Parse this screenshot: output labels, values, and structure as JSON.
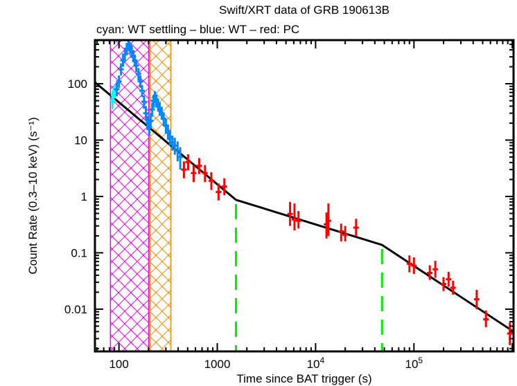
{
  "chart_data": {
    "type": "scatter",
    "title": "Swift/XRT data of GRB 190613B",
    "subtitle": "cyan: WT settling – blue: WT – red: PC",
    "xlabel": "Time since BAT trigger (s)",
    "ylabel": "Count Rate (0.3–10 keV) (s⁻¹)",
    "xscale": "log",
    "yscale": "log",
    "xlim": [
      57,
      1030000
    ],
    "ylim": [
      0.00178,
      594
    ],
    "grid": false,
    "x_ticks": [
      {
        "value": 100,
        "label": "100"
      },
      {
        "value": 1000,
        "label": "1000"
      },
      {
        "value": 10000,
        "label": "10",
        "exp": "4"
      },
      {
        "value": 100000,
        "label": "10",
        "exp": "5"
      }
    ],
    "y_ticks": [
      {
        "value": 100,
        "label": "100"
      },
      {
        "value": 10,
        "label": "10"
      },
      {
        "value": 1,
        "label": "1"
      },
      {
        "value": 0.1,
        "label": "0.1"
      },
      {
        "value": 0.01,
        "label": "0.01"
      }
    ],
    "colors": {
      "wt_settling": "#00ffff",
      "wt": "#0088ff",
      "pc": "#ff0000",
      "model": "#000000",
      "breaks": "#00ee00",
      "flare_box_1": "#ee00ee",
      "flare_box_2": "#ff8800"
    },
    "shaded_intervals": [
      {
        "name": "flare-interval-1",
        "x0": 82,
        "x1": 201,
        "color": "#ee00ee"
      },
      {
        "name": "flare-interval-2",
        "x0": 207,
        "x1": 337,
        "color": "#ff8800"
      }
    ],
    "model": {
      "name": "broken power-law fit",
      "points": [
        [
          57,
          106
        ],
        [
          1550,
          0.87
        ],
        [
          47400,
          0.138
        ],
        [
          1030000,
          0.004
        ]
      ]
    },
    "breaks": [
      1550,
      47400
    ],
    "series": [
      {
        "name": "WT settling",
        "color": "#00ffff",
        "points": [
          [
            86,
            50,
            35,
            70
          ],
          [
            88,
            62,
            45,
            85
          ],
          [
            90,
            72,
            55,
            95
          ]
        ]
      },
      {
        "name": "WT",
        "color": "#0088ff",
        "points": [
          [
            95,
            80,
            60,
            105
          ],
          [
            100,
            110,
            85,
            140
          ],
          [
            105,
            180,
            140,
            230
          ],
          [
            110,
            260,
            200,
            330
          ],
          [
            115,
            330,
            260,
            420
          ],
          [
            120,
            420,
            330,
            530
          ],
          [
            125,
            480,
            380,
            600
          ],
          [
            130,
            430,
            340,
            540
          ],
          [
            135,
            380,
            300,
            480
          ],
          [
            140,
            300,
            240,
            380
          ],
          [
            145,
            260,
            200,
            330
          ],
          [
            150,
            210,
            160,
            270
          ],
          [
            158,
            150,
            115,
            190
          ],
          [
            165,
            110,
            85,
            140
          ],
          [
            172,
            75,
            58,
            95
          ],
          [
            180,
            48,
            36,
            62
          ],
          [
            188,
            30,
            22,
            40
          ],
          [
            195,
            20,
            15,
            27
          ],
          [
            203,
            17,
            12,
            24
          ],
          [
            210,
            22,
            16,
            30
          ],
          [
            218,
            35,
            26,
            46
          ],
          [
            225,
            50,
            38,
            64
          ],
          [
            232,
            58,
            45,
            74
          ],
          [
            240,
            50,
            38,
            64
          ],
          [
            250,
            42,
            32,
            55
          ],
          [
            260,
            36,
            27,
            47
          ],
          [
            272,
            30,
            23,
            39
          ],
          [
            285,
            24,
            18,
            31
          ],
          [
            300,
            18,
            13,
            24
          ],
          [
            315,
            14,
            10,
            19
          ],
          [
            330,
            11,
            8,
            15
          ],
          [
            350,
            9,
            6.5,
            12
          ],
          [
            370,
            8,
            5.5,
            11
          ],
          [
            395,
            6.5,
            4.2,
            9.5
          ],
          [
            420,
            5,
            3,
            7.5
          ]
        ]
      },
      {
        "name": "PC",
        "color": "#ff0000",
        "points": [
          [
            458,
            3.0,
            2.1,
            4.2
          ],
          [
            505,
            4.1,
            2.9,
            5.6
          ],
          [
            575,
            2.6,
            1.8,
            3.6
          ],
          [
            655,
            3.5,
            2.5,
            4.8
          ],
          [
            750,
            2.6,
            1.8,
            3.6
          ],
          [
            870,
            1.9,
            1.3,
            2.7
          ],
          [
            1030,
            1.2,
            0.85,
            1.7
          ],
          [
            1180,
            1.5,
            1.05,
            2.1
          ],
          [
            5500,
            0.49,
            0.3,
            0.8
          ],
          [
            6100,
            0.39,
            0.25,
            0.75
          ],
          [
            6700,
            0.37,
            0.27,
            0.55
          ],
          [
            12900,
            0.32,
            0.18,
            0.52
          ],
          [
            13500,
            0.37,
            0.2,
            0.75
          ],
          [
            18200,
            0.24,
            0.16,
            0.33
          ],
          [
            20000,
            0.21,
            0.16,
            0.3
          ],
          [
            25800,
            0.28,
            0.2,
            0.4
          ],
          [
            90000,
            0.064,
            0.045,
            0.09
          ],
          [
            100000,
            0.059,
            0.042,
            0.083
          ],
          [
            145000,
            0.044,
            0.033,
            0.06
          ],
          [
            165000,
            0.051,
            0.036,
            0.072
          ],
          [
            200000,
            0.028,
            0.021,
            0.037
          ],
          [
            225000,
            0.034,
            0.025,
            0.046
          ],
          [
            250000,
            0.024,
            0.018,
            0.032
          ],
          [
            435000,
            0.015,
            0.01,
            0.022
          ],
          [
            540000,
            0.0066,
            0.0048,
            0.0095
          ],
          [
            945000,
            0.0037,
            0.0023,
            0.0058
          ]
        ]
      }
    ]
  }
}
